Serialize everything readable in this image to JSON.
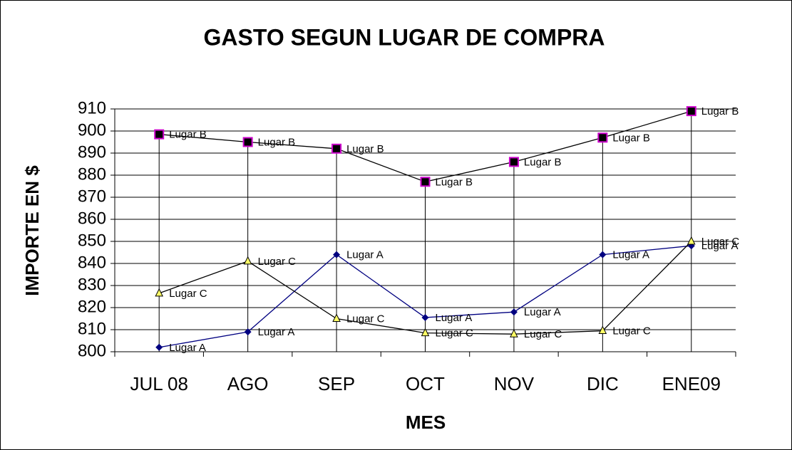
{
  "chart_data": {
    "type": "line",
    "title": "GASTO SEGUN LUGAR DE COMPRA",
    "x_label": "MES",
    "y_label": "IMPORTE EN $",
    "categories": [
      "JUL 08",
      "AGO",
      "SEP",
      "OCT",
      "NOV",
      "DIC",
      "ENE09"
    ],
    "series": [
      {
        "name": "Lugar A",
        "color": "#000080",
        "marker": "diamond",
        "marker_color": "#000080",
        "values": [
          802,
          809,
          844,
          815.5,
          818,
          844,
          848
        ]
      },
      {
        "name": "Lugar B",
        "color": "#000000",
        "marker": "square",
        "marker_color": "#000000",
        "marker_edge": "#cc00cc",
        "values": [
          898.5,
          895,
          892,
          877,
          886,
          897,
          909
        ]
      },
      {
        "name": "Lugar C",
        "color": "#000000",
        "marker": "triangle",
        "marker_color": "#ffff66",
        "marker_edge": "#000000",
        "values": [
          826.5,
          841,
          815,
          808.5,
          808,
          809.5,
          850
        ]
      }
    ],
    "ylim": [
      800,
      910
    ],
    "yticks": [
      800,
      810,
      820,
      830,
      840,
      850,
      860,
      870,
      880,
      890,
      900,
      910
    ],
    "grid": true,
    "drop_lines": true,
    "data_labels": true
  }
}
